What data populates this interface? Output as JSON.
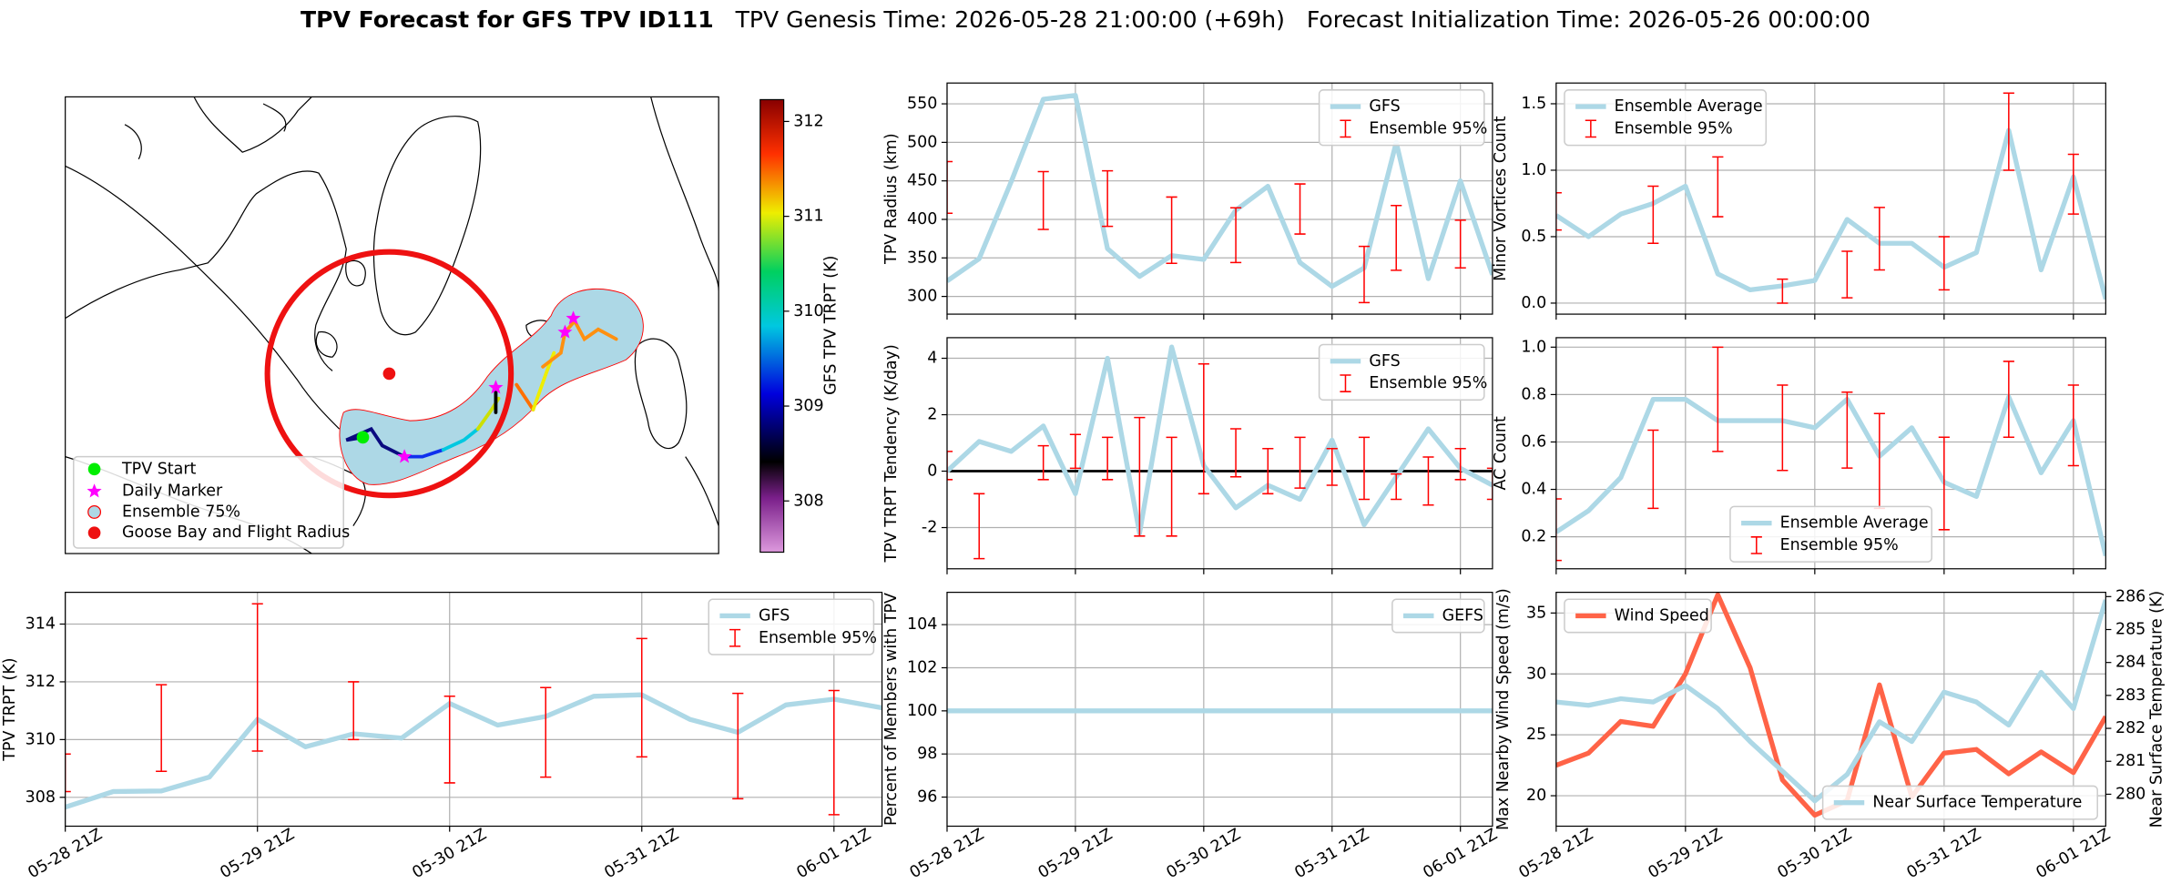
{
  "title": "TPV Forecast for GFS TPV ID111",
  "subtitle": "TPV Genesis Time: 2026-05-28 21:00:00 (+69h)   Forecast Initialization Time: 2026-05-26 00:00:00",
  "chart_data": [
    {
      "type": "map",
      "legend_entries": [
        "TPV Start",
        "Daily Marker",
        "Ensemble 75%",
        "Goose Bay and Flight Radius"
      ],
      "colorbar_label": "GFS TPV TRPT (K)",
      "clim": [
        307.46,
        312.23
      ],
      "cticks": [
        308,
        309,
        310,
        311,
        312
      ]
    },
    {
      "type": "line",
      "ylabel": "TPV TRPT (K)",
      "categories": [
        "05-28 21Z",
        null,
        null,
        null,
        "05-29 21Z",
        null,
        null,
        null,
        "05-30 21Z",
        null,
        null,
        null,
        "05-31 21Z",
        null,
        null,
        null,
        "06-01 21Z",
        null
      ],
      "ylim": [
        307.0,
        315.1
      ],
      "yticks": [
        308,
        310,
        312,
        314
      ],
      "grid": true,
      "legend": "upper right",
      "series": [
        {
          "name": "GFS",
          "color": "#add8e6",
          "values": [
            307.66,
            308.2,
            308.22,
            308.7,
            310.7,
            309.75,
            310.2,
            310.05,
            311.25,
            310.5,
            310.8,
            311.5,
            311.55,
            310.7,
            310.25,
            311.2,
            311.4,
            311.1
          ]
        },
        {
          "name": "Ensemble 95%",
          "color": "#ff0000",
          "low": [
            308.2,
            null,
            308.9,
            null,
            309.6,
            null,
            310.0,
            null,
            308.5,
            null,
            308.7,
            null,
            309.4,
            null,
            307.95,
            null,
            307.4,
            null
          ],
          "high": [
            309.5,
            null,
            311.9,
            null,
            314.7,
            null,
            312.0,
            null,
            311.5,
            null,
            311.8,
            null,
            313.5,
            null,
            311.6,
            null,
            311.7,
            null
          ]
        }
      ]
    },
    {
      "type": "line",
      "ylabel": "TPV Radius (km)",
      "ylim": [
        277,
        577
      ],
      "yticks": [
        300,
        350,
        400,
        450,
        500,
        550
      ],
      "grid": true,
      "legend": "upper right",
      "series": [
        {
          "name": "GFS",
          "color": "#add8e6",
          "values": [
            320,
            349,
            449,
            556,
            561,
            362,
            326,
            353,
            348,
            412,
            443,
            344,
            313,
            337,
            500,
            323,
            450,
            328
          ]
        },
        {
          "name": "Ensemble 95%",
          "color": "#ff0000",
          "low": [
            408,
            null,
            null,
            387,
            null,
            391,
            null,
            343,
            null,
            344,
            null,
            381,
            null,
            292,
            334,
            null,
            337,
            null
          ],
          "high": [
            475,
            null,
            null,
            462,
            null,
            463,
            null,
            429,
            null,
            415,
            null,
            446,
            null,
            365,
            418,
            null,
            399,
            null
          ]
        }
      ]
    },
    {
      "type": "line",
      "ylabel": "TPV TRPT Tendency (K/day)",
      "ylim": [
        -3.46,
        4.73
      ],
      "yticks": [
        -2,
        0,
        2,
        4
      ],
      "grid": true,
      "hline": 0,
      "legend": "upper right",
      "series": [
        {
          "name": "GFS",
          "color": "#add8e6",
          "values": [
            0,
            1.05,
            0.7,
            1.6,
            -0.8,
            4.0,
            -2.2,
            4.4,
            0.2,
            -1.3,
            -0.5,
            -1.0,
            1.1,
            -1.9,
            -0.2,
            1.5,
            0.1,
            -0.5
          ]
        },
        {
          "name": "Ensemble 95%",
          "color": "#ff0000",
          "low": [
            -0.3,
            -3.1,
            null,
            -0.3,
            0.1,
            -0.3,
            -2.3,
            -2.3,
            -0.8,
            -0.2,
            -0.8,
            -0.6,
            -0.5,
            -1.0,
            -1.0,
            -1.2,
            -0.3,
            -1.0
          ],
          "high": [
            0.7,
            -0.8,
            null,
            0.9,
            1.3,
            1.2,
            1.9,
            1.2,
            3.8,
            1.5,
            0.8,
            1.2,
            0.8,
            1.2,
            -0.1,
            0.5,
            0.8,
            0.1
          ]
        }
      ]
    },
    {
      "type": "line",
      "ylabel": "Percent of Members with TPV",
      "categories": [
        "05-28 21Z",
        null,
        null,
        null,
        "05-29 21Z",
        null,
        null,
        null,
        "05-30 21Z",
        null,
        null,
        null,
        "05-31 21Z",
        null,
        null,
        null,
        "06-01 21Z",
        null
      ],
      "ylim": [
        94.65,
        105.5
      ],
      "yticks": [
        96,
        98,
        100,
        102,
        104
      ],
      "grid": true,
      "legend": "upper right",
      "series": [
        {
          "name": "GEFS",
          "color": "#add8e6",
          "values": [
            100,
            100,
            100,
            100,
            100,
            100,
            100,
            100,
            100,
            100,
            100,
            100,
            100,
            100,
            100,
            100,
            100,
            100
          ]
        }
      ]
    },
    {
      "type": "line",
      "ylabel": "Minor Vortices Count",
      "ylim": [
        -0.083,
        1.656
      ],
      "yticks": [
        {
          "value": 0,
          "label": "0.0"
        },
        0.5,
        {
          "value": 1,
          "label": "1.0"
        },
        1.5
      ],
      "grid": true,
      "legend": "upper left",
      "series": [
        {
          "name": "Ensemble Average",
          "color": "#add8e6",
          "values": [
            0.66,
            0.5,
            0.67,
            0.75,
            0.88,
            0.22,
            0.1,
            0.13,
            0.17,
            0.63,
            0.45,
            0.45,
            0.27,
            0.38,
            1.3,
            0.25,
            0.95,
            0.03
          ]
        },
        {
          "name": "Ensemble 95%",
          "color": "#ff0000",
          "low": [
            0.55,
            null,
            null,
            0.45,
            null,
            0.65,
            null,
            0.0,
            null,
            0.04,
            0.25,
            null,
            0.1,
            null,
            1.0,
            null,
            0.67,
            null
          ],
          "high": [
            0.83,
            null,
            null,
            0.88,
            null,
            1.1,
            null,
            0.18,
            null,
            0.39,
            0.72,
            null,
            0.5,
            null,
            1.58,
            null,
            1.12,
            null
          ]
        }
      ]
    },
    {
      "type": "line",
      "ylabel": "AC Count",
      "ylim": [
        0.065,
        1.04
      ],
      "yticks": [
        0.2,
        0.4,
        0.6,
        0.8,
        {
          "value": 1,
          "label": "1.0"
        }
      ],
      "grid": true,
      "legend": "lower center",
      "series": [
        {
          "name": "Ensemble Average",
          "color": "#add8e6",
          "values": [
            0.22,
            0.31,
            0.45,
            0.78,
            0.78,
            0.69,
            0.69,
            0.69,
            0.66,
            0.78,
            0.54,
            0.66,
            0.43,
            0.37,
            0.79,
            0.47,
            0.69,
            0.12
          ]
        },
        {
          "name": "Ensemble 95%",
          "color": "#ff0000",
          "low": [
            0.1,
            null,
            null,
            0.32,
            null,
            0.56,
            null,
            0.48,
            null,
            0.49,
            0.32,
            null,
            0.23,
            null,
            0.62,
            null,
            0.5,
            null
          ],
          "high": [
            0.36,
            null,
            null,
            0.65,
            null,
            1.0,
            null,
            0.84,
            null,
            0.81,
            0.72,
            null,
            0.62,
            null,
            0.94,
            null,
            0.84,
            null
          ]
        }
      ]
    },
    {
      "type": "line",
      "ylabel": "Max Nearby Wind Speed (m/s)",
      "ylabel_color": "#ff6347",
      "y2label": "Near Surface Temperature (K)",
      "y2label_color": "#4169e1",
      "categories": [
        "05-28 21Z",
        null,
        null,
        null,
        "05-29 21Z",
        null,
        null,
        null,
        "05-30 21Z",
        null,
        null,
        null,
        "05-31 21Z",
        null,
        null,
        null,
        "06-01 21Z",
        null
      ],
      "ylim": [
        17.5,
        36.7
      ],
      "yticks": [
        20,
        25,
        30,
        35
      ],
      "y2lim": [
        279.03,
        286.13
      ],
      "y2ticks": [
        280,
        281,
        282,
        283,
        284,
        285,
        286
      ],
      "grid": true,
      "series": [
        {
          "name": "Wind Speed",
          "color": "#ff6347",
          "legend": "upper left",
          "values": [
            22.5,
            23.5,
            26.1,
            25.7,
            30,
            36.5,
            30.5,
            21.3,
            18.4,
            19.6,
            29.1,
            19.9,
            23.5,
            23.8,
            21.8,
            23.6,
            21.9,
            26.5
          ]
        },
        {
          "name": "Near Surface Temperature",
          "color": "#add8e6",
          "axis": "y2",
          "legend": "lower right",
          "values": [
            282.8,
            282.7,
            282.9,
            282.8,
            283.3,
            282.6,
            281.6,
            280.7,
            279.8,
            280.6,
            282.2,
            281.6,
            283.1,
            282.8,
            282.1,
            283.7,
            282.6,
            285.9
          ]
        }
      ]
    }
  ]
}
